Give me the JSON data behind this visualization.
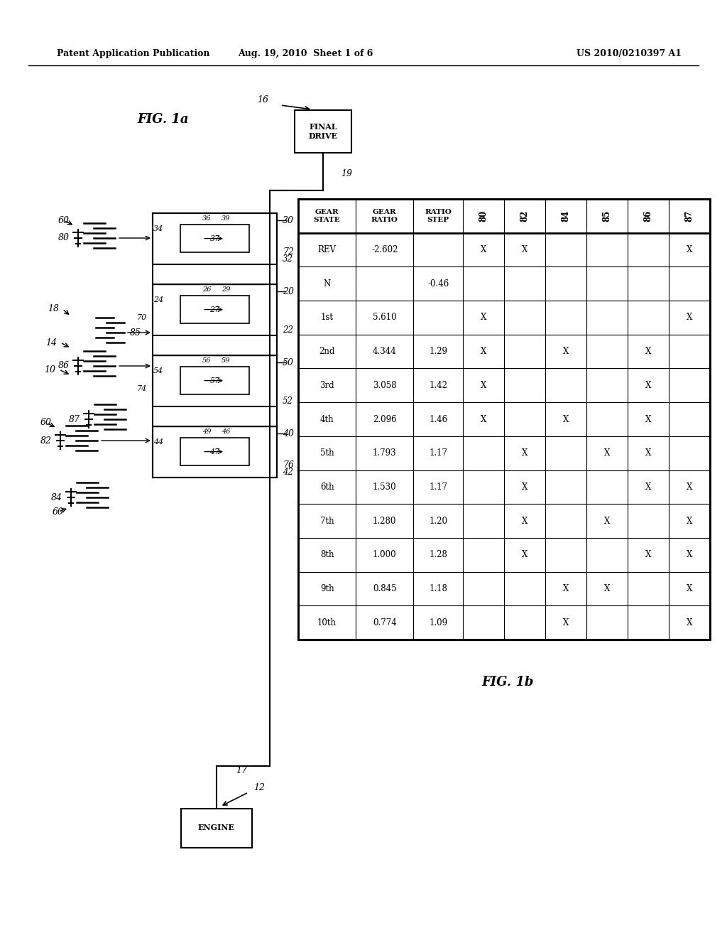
{
  "header_left": "Patent Application Publication",
  "header_center": "Aug. 19, 2010  Sheet 1 of 6",
  "header_right": "US 2010/0210397 A1",
  "fig1a_label": "FIG. 1a",
  "fig1b_label": "FIG. 1b",
  "table": {
    "col_headers": [
      "GEAR\nSTATE",
      "GEAR\nRATIO",
      "RATIO\nSTEP",
      "80",
      "82",
      "84",
      "85",
      "86",
      "87"
    ],
    "rows": [
      [
        "REV",
        "-2.602",
        "",
        "X",
        "X",
        "",
        "",
        "",
        "X"
      ],
      [
        "N",
        "",
        "-0.46",
        "",
        "",
        "",
        "",
        "",
        ""
      ],
      [
        "1st",
        "5.610",
        "",
        "X",
        "",
        "",
        "",
        "",
        "X"
      ],
      [
        "2nd",
        "4.344",
        "1.29",
        "X",
        "",
        "X",
        "",
        "X",
        ""
      ],
      [
        "3rd",
        "3.058",
        "1.42",
        "X",
        "",
        "",
        "",
        "X",
        ""
      ],
      [
        "4th",
        "2.096",
        "1.46",
        "X",
        "",
        "X",
        "",
        "X",
        ""
      ],
      [
        "5th",
        "1.793",
        "1.17",
        "",
        "X",
        "",
        "X",
        "X",
        ""
      ],
      [
        "6th",
        "1.530",
        "1.17",
        "",
        "X",
        "",
        "",
        "X",
        "X"
      ],
      [
        "7th",
        "1.280",
        "1.20",
        "",
        "X",
        "",
        "X",
        "",
        "X"
      ],
      [
        "8th",
        "1.000",
        "1.28",
        "",
        "X",
        "",
        "",
        "X",
        "X"
      ],
      [
        "9th",
        "0.845",
        "1.18",
        "",
        "",
        "X",
        "X",
        "",
        "X"
      ],
      [
        "10th",
        "0.774",
        "1.09",
        "",
        "",
        "X",
        "",
        "",
        "X"
      ]
    ]
  },
  "bg_color": "#ffffff",
  "line_color": "#000000"
}
